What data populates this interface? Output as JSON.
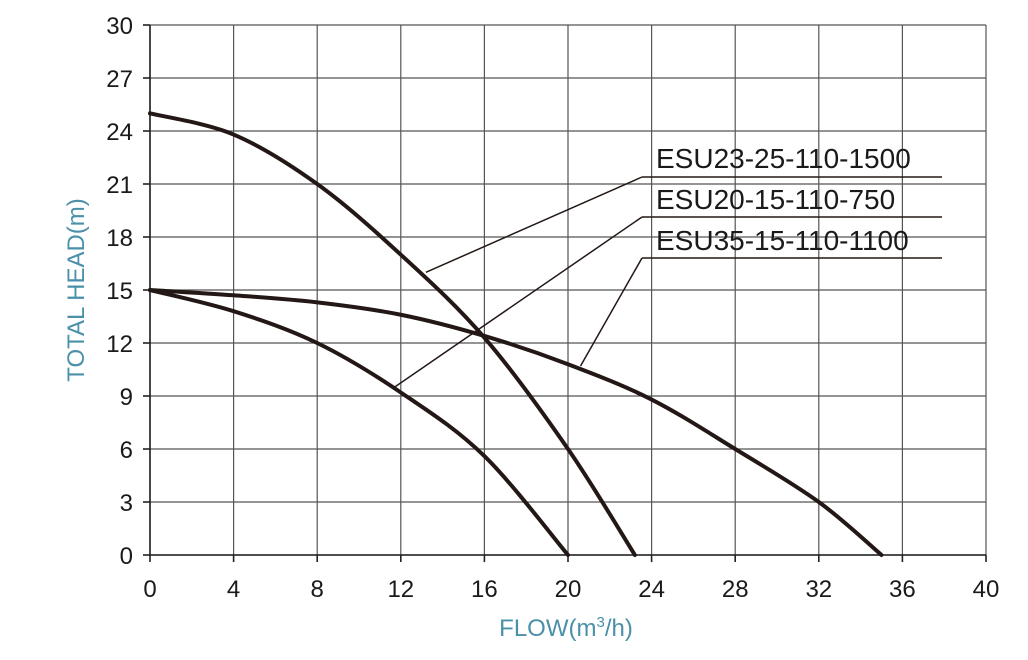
{
  "chart_data": {
    "type": "line",
    "title": "",
    "xlabel_main": "FLOW(m",
    "xlabel_sup": "3",
    "xlabel_tail": "/h)",
    "ylabel": "TOTAL HEAD(m)",
    "xlim": [
      0,
      40
    ],
    "ylim": [
      0,
      30
    ],
    "x_ticks": [
      0,
      4,
      8,
      12,
      16,
      20,
      24,
      28,
      32,
      36,
      40
    ],
    "y_ticks": [
      0,
      3,
      6,
      9,
      12,
      15,
      18,
      21,
      24,
      27,
      30
    ],
    "x_tick_labels": [
      "0",
      "4",
      "8",
      "12",
      "16",
      "20",
      "24",
      "28",
      "32",
      "36",
      "40"
    ],
    "y_tick_labels": [
      "0",
      "3",
      "6",
      "9",
      "12",
      "15",
      "18",
      "21",
      "24",
      "27",
      "30"
    ],
    "grid": true,
    "legend_placement": "top-right (leader-line labels)",
    "colors": {
      "curve": "#231815",
      "axis_title": "#4a90a8",
      "grid": "#555555"
    },
    "series": [
      {
        "name": "ESU23-25-110-1500",
        "x": [
          0,
          4,
          8,
          12,
          16,
          20,
          23.2
        ],
        "y": [
          25,
          23.8,
          21,
          17,
          12.3,
          6,
          0
        ],
        "label_anchor": {
          "x": 13.2,
          "y": 16
        }
      },
      {
        "name": "ESU20-15-110-750",
        "x": [
          0,
          4,
          8,
          12,
          16,
          20
        ],
        "y": [
          15,
          13.8,
          12,
          9.2,
          5.6,
          0
        ],
        "label_anchor": {
          "x": 11.7,
          "y": 9.5
        }
      },
      {
        "name": "ESU35-15-110-1100",
        "x": [
          0,
          4,
          8,
          12,
          16,
          20,
          24,
          28,
          32,
          35
        ],
        "y": [
          15,
          14.7,
          14.3,
          13.6,
          12.4,
          10.8,
          8.8,
          6,
          3,
          0
        ],
        "label_anchor": {
          "x": 20.6,
          "y": 10.7
        }
      }
    ]
  }
}
